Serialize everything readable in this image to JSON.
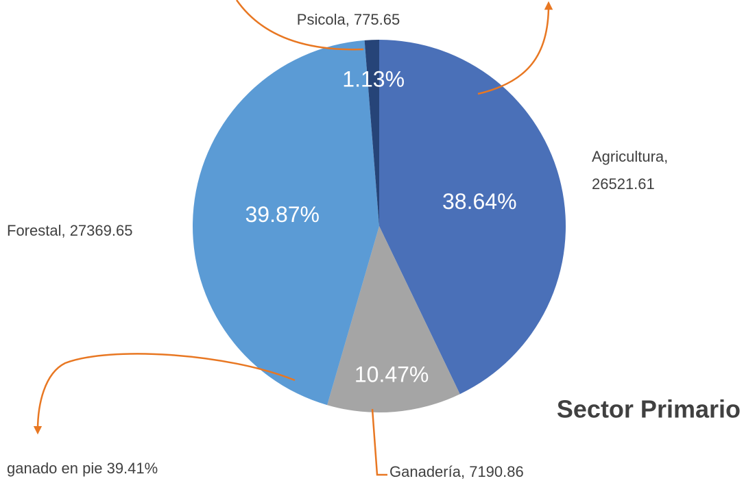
{
  "chart_data": {
    "type": "pie",
    "title": "Sector Primario",
    "categories": [
      "Agricultura",
      "Ganadería",
      "Forestal",
      "Psicola"
    ],
    "values": [
      26521.61,
      7190.86,
      27369.65,
      775.65
    ],
    "value_labels": [
      "Agricultura, 26521.61",
      "Ganadería, 7190.86",
      "Forestal, 27369.65",
      "Psicola, 775.65"
    ],
    "percent_labels": [
      "38.64%",
      "10.47%",
      "39.87%",
      "1.13%"
    ],
    "colors": [
      "#4a70b8",
      "#a5a5a5",
      "#5b9bd5",
      "#264478"
    ],
    "annotation": "ganado en pie 39.41%"
  }
}
